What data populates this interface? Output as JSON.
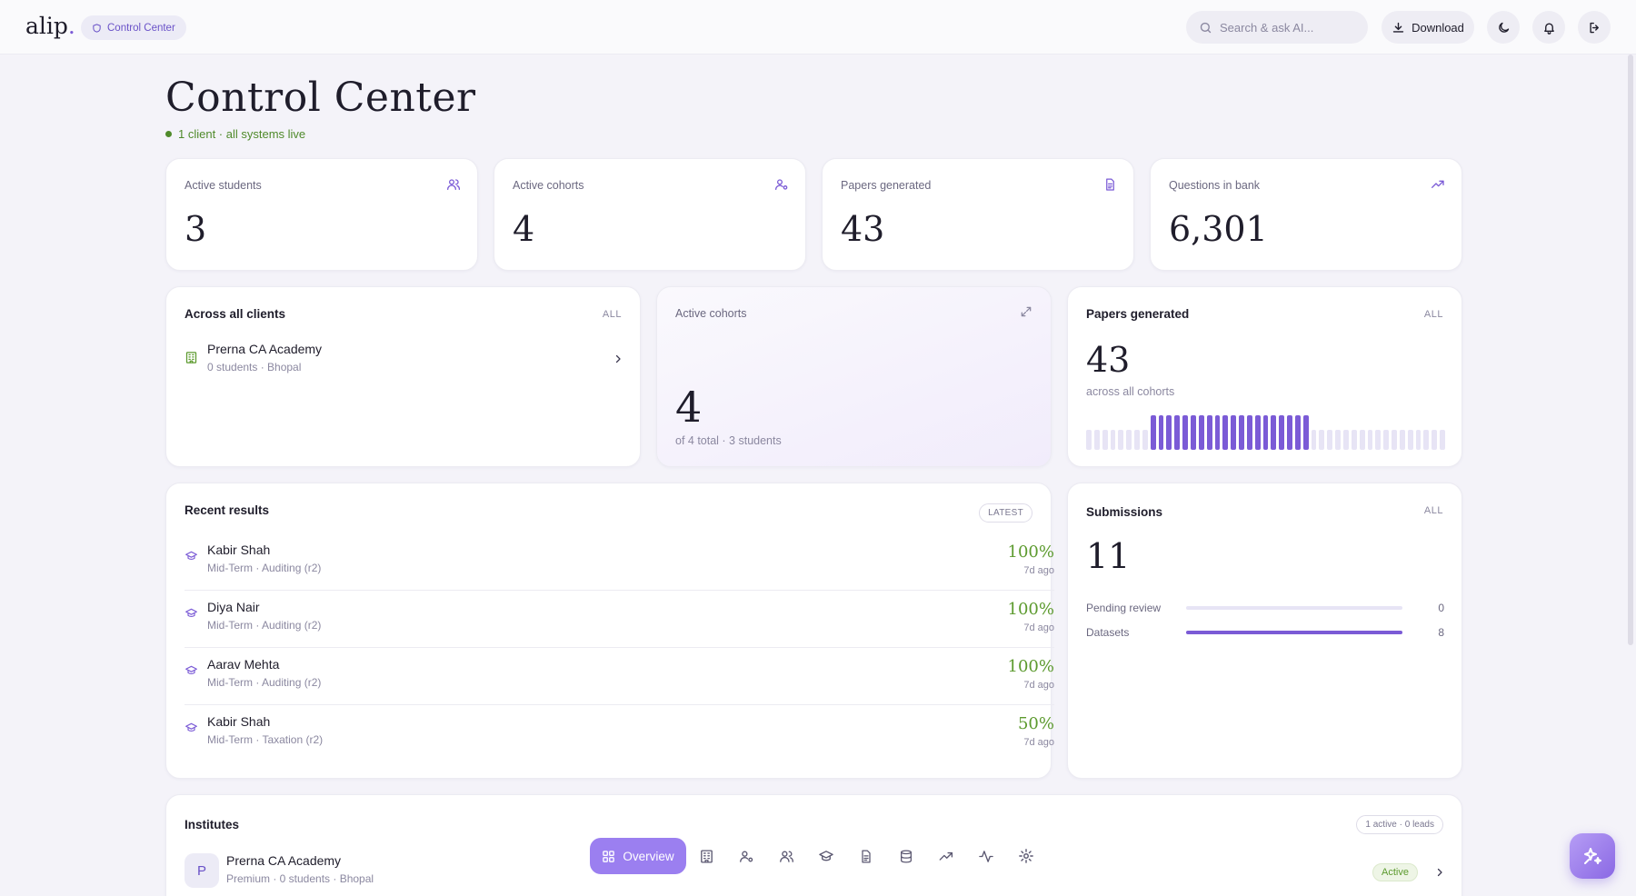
{
  "app": {
    "logo": "alip",
    "logo_dot": "."
  },
  "header": {
    "breadcrumb": "Control Center",
    "search_placeholder": "Search & ask AI...",
    "download_label": "Download",
    "icons": [
      "moon-icon",
      "bell-icon",
      "logout-icon"
    ]
  },
  "page": {
    "title": "Control Center",
    "status": "1 client · all systems live"
  },
  "stats": [
    {
      "label": "Active students",
      "value": "3",
      "icon": "users-icon"
    },
    {
      "label": "Active cohorts",
      "value": "4",
      "icon": "user-gear-icon"
    },
    {
      "label": "Papers generated",
      "value": "43",
      "icon": "document-icon"
    },
    {
      "label": "Questions in bank",
      "value": "6,301",
      "icon": "trend-up-icon"
    }
  ],
  "clients": {
    "title": "Across all clients",
    "tag": "ALL",
    "items": [
      {
        "name": "Prerna CA Academy",
        "sub": "0 students · Bhopal"
      }
    ]
  },
  "cohorts_card": {
    "label": "Active cohorts",
    "value": "4",
    "sub": "of 4 total · 3 students"
  },
  "papers_card": {
    "title": "Papers generated",
    "tag": "ALL",
    "value": "43",
    "sub": "across all cohorts",
    "bars": {
      "total": 45,
      "active_start": 8,
      "active_end": 27,
      "accent": "#7b5bd6",
      "muted": "#e7e4f5"
    }
  },
  "recent_results": {
    "title": "Recent results",
    "tag": "LATEST",
    "items": [
      {
        "name": "Kabir Shah",
        "sub": "Mid-Term · Auditing (r2)",
        "score": "100%",
        "time": "7d ago"
      },
      {
        "name": "Diya Nair",
        "sub": "Mid-Term · Auditing (r2)",
        "score": "100%",
        "time": "7d ago"
      },
      {
        "name": "Aarav Mehta",
        "sub": "Mid-Term · Auditing (r2)",
        "score": "100%",
        "time": "7d ago"
      },
      {
        "name": "Kabir Shah",
        "sub": "Mid-Term · Taxation (r2)",
        "score": "50%",
        "time": "7d ago"
      }
    ]
  },
  "submissions": {
    "title": "Submissions",
    "tag": "ALL",
    "value": "11",
    "rows": [
      {
        "label": "Pending review",
        "value": "0",
        "fraction": 0
      },
      {
        "label": "Datasets",
        "value": "8",
        "fraction": 1
      }
    ]
  },
  "institutes": {
    "title": "Institutes",
    "tag": "1 active · 0 leads",
    "items": [
      {
        "initial": "P",
        "name": "Prerna CA Academy",
        "sub": "Premium · 0 students · Bhopal",
        "status": "Active"
      }
    ]
  },
  "bottom_nav": {
    "active_label": "Overview",
    "items": [
      "building-icon",
      "user-gear-icon",
      "users-icon",
      "graduation-cap-icon",
      "document-icon",
      "database-icon",
      "trend-up-icon",
      "activity-icon",
      "settings-icon"
    ]
  },
  "colors": {
    "accent": "#7b5bd6",
    "success": "#5c9a2e",
    "background": "#f4f3f9"
  }
}
